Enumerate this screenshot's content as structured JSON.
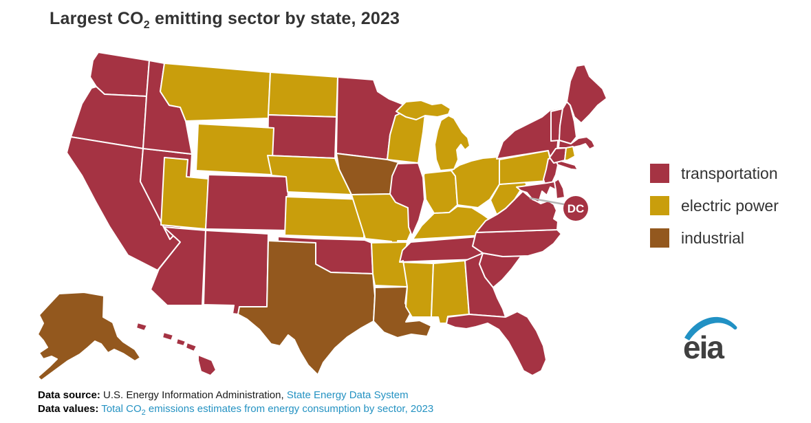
{
  "title": {
    "prefix": "Largest CO",
    "subscript": "2",
    "suffix": " emitting sector by state, 2023"
  },
  "legend": {
    "items": [
      {
        "label": "transportation",
        "sector": "transportation"
      },
      {
        "label": "electric power",
        "sector": "electric power"
      },
      {
        "label": "industrial",
        "sector": "industrial"
      }
    ]
  },
  "map": {
    "dc_badge": "DC"
  },
  "chart_data": {
    "type": "choropleth",
    "title": "Largest CO2 emitting sector by state, 2023",
    "region": "United States, 50 states plus District of Columbia",
    "legend_position": "right",
    "categories": [
      "transportation",
      "electric power",
      "industrial"
    ],
    "colors": {
      "transportation": "#a53343",
      "electric power": "#c99e0c",
      "industrial": "#93581e"
    },
    "states": {
      "WA": "transportation",
      "OR": "transportation",
      "CA": "transportation",
      "NV": "transportation",
      "ID": "transportation",
      "AZ": "transportation",
      "NM": "transportation",
      "CO": "transportation",
      "SD": "transportation",
      "MN": "transportation",
      "OK": "transportation",
      "IL": "transportation",
      "TN": "transportation",
      "VA": "transportation",
      "NC": "transportation",
      "SC": "transportation",
      "GA": "transportation",
      "FL": "transportation",
      "NY": "transportation",
      "NJ": "transportation",
      "MD": "transportation",
      "DE": "transportation",
      "CT": "transportation",
      "MA": "transportation",
      "VT": "transportation",
      "NH": "transportation",
      "ME": "transportation",
      "HI": "transportation",
      "DC": "transportation",
      "MT": "electric power",
      "WY": "electric power",
      "UT": "electric power",
      "ND": "electric power",
      "NE": "electric power",
      "KS": "electric power",
      "MO": "electric power",
      "AR": "electric power",
      "WI": "electric power",
      "MI": "electric power",
      "IN": "electric power",
      "OH": "electric power",
      "KY": "electric power",
      "WV": "electric power",
      "PA": "electric power",
      "MS": "electric power",
      "AL": "electric power",
      "RI": "electric power",
      "AK": "industrial",
      "TX": "industrial",
      "LA": "industrial",
      "IA": "industrial"
    }
  },
  "footer": {
    "source_label": "Data source:",
    "source_text": " U.S. Energy Information Administration, ",
    "source_link": "State Energy Data System",
    "values_label": "Data values:",
    "values_link_prefix": " Total CO",
    "values_link_sub": "2",
    "values_link_suffix": " emissions estimates from energy consumption by sector, 2023",
    "link_color": "#2492c2"
  },
  "logo": {
    "text": "eia",
    "swoosh_color": "#2191c4",
    "text_color": "#404040"
  }
}
